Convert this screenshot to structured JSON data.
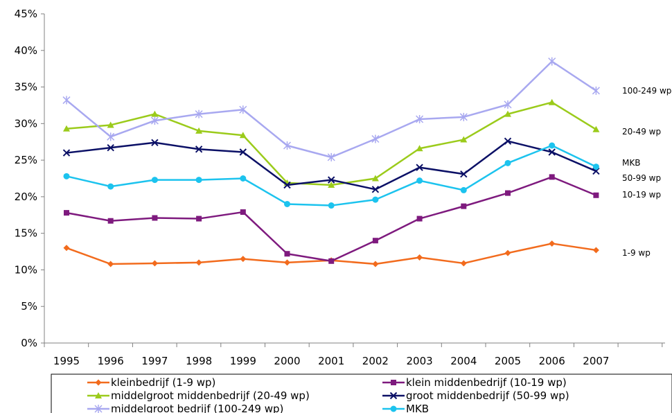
{
  "chart_data": {
    "type": "line",
    "title": "",
    "xlabel": "",
    "ylabel": "",
    "categories": [
      "1995",
      "1996",
      "1997",
      "1998",
      "1999",
      "2000",
      "2001",
      "2002",
      "2003",
      "2004",
      "2005",
      "2006",
      "2007"
    ],
    "ylim": [
      0,
      45
    ],
    "yticks": [
      "0%",
      "5%",
      "10%",
      "15%",
      "20%",
      "25%",
      "30%",
      "35%",
      "40%",
      "45%"
    ],
    "grid": false,
    "legend_position": "bottom",
    "series": [
      {
        "name": "kleinbedrijf (1-9 wp)",
        "end_label": "1-9 wp",
        "color": "#F26B1D",
        "marker": "diamond",
        "values": [
          13.0,
          10.8,
          10.9,
          11.0,
          11.5,
          11.0,
          11.3,
          10.8,
          11.7,
          10.9,
          12.3,
          13.6,
          12.7
        ]
      },
      {
        "name": "klein middenbedrijf (10-19 wp)",
        "end_label": "10-19 wp",
        "color": "#7E1A7E",
        "marker": "square",
        "values": [
          17.8,
          16.7,
          17.1,
          17.0,
          17.9,
          12.2,
          11.2,
          14.0,
          17.0,
          18.7,
          20.5,
          22.7,
          20.2
        ]
      },
      {
        "name": "middelgroot middenbedrijf (20-49 wp)",
        "end_label": "20-49 wp",
        "color": "#9BCB1B",
        "marker": "triangle",
        "values": [
          29.3,
          29.8,
          31.3,
          29.0,
          28.4,
          21.9,
          21.6,
          22.5,
          26.6,
          27.8,
          31.3,
          32.9,
          29.2
        ]
      },
      {
        "name": "groot middenbedrijf (50-99 wp)",
        "end_label": "50-99 wp",
        "color": "#0B1066",
        "marker": "x",
        "values": [
          26.0,
          26.7,
          27.4,
          26.5,
          26.1,
          21.6,
          22.3,
          21.0,
          24.0,
          23.1,
          27.6,
          26.1,
          23.5
        ]
      },
      {
        "name": "middelgroot bedrijf (100-249 wp)",
        "end_label": "100-249 wp",
        "color": "#A8A8F0",
        "marker": "star",
        "values": [
          33.2,
          28.2,
          30.4,
          31.3,
          31.9,
          27.0,
          25.4,
          27.9,
          30.6,
          30.9,
          32.6,
          38.5,
          34.5
        ]
      },
      {
        "name": "MKB",
        "end_label": "MKB",
        "color": "#1CC3EE",
        "marker": "circle",
        "values": [
          22.8,
          21.4,
          22.3,
          22.3,
          22.5,
          19.0,
          18.8,
          19.6,
          22.2,
          20.9,
          24.6,
          27.0,
          24.1
        ]
      }
    ]
  }
}
